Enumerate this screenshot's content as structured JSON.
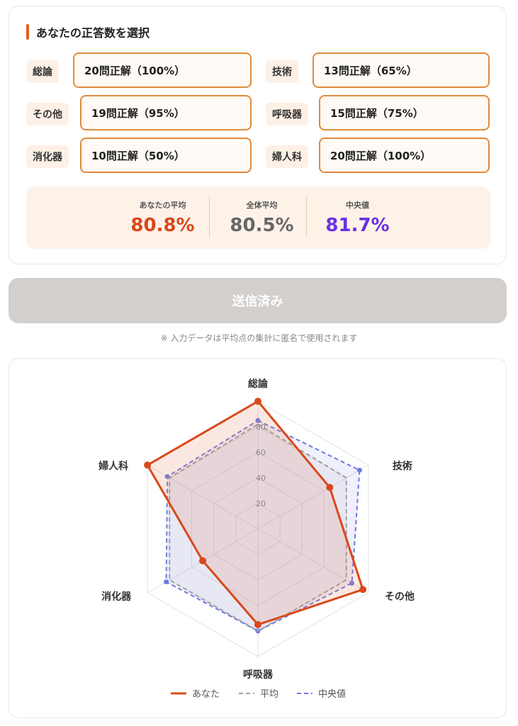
{
  "section_title": "あなたの正答数を選択",
  "subjects": [
    {
      "label": "総論",
      "selected": "20問正解（100%）"
    },
    {
      "label": "技術",
      "selected": "13問正解（65%）"
    },
    {
      "label": "その他",
      "selected": "19問正解（95%）"
    },
    {
      "label": "呼吸器",
      "selected": "15問正解（75%）"
    },
    {
      "label": "消化器",
      "selected": "10問正解（50%）"
    },
    {
      "label": "婦人科",
      "selected": "20問正解（100%）"
    }
  ],
  "stats": {
    "your_avg_label": "あなたの平均",
    "your_avg": "80.8%",
    "overall_avg_label": "全体平均",
    "overall_avg": "80.5%",
    "median_label": "中央値",
    "median": "81.7%"
  },
  "submit_label": "送信済み",
  "note": "※ 入力データは平均点の集計に匿名で使用されます",
  "colors": {
    "accent": "#e0601a",
    "you": "#d9481a",
    "average": "#999999",
    "median": "#6c7ae0",
    "median_text": "#6a2ee8"
  },
  "chart_data": {
    "type": "radar",
    "axes": [
      "総論",
      "技術",
      "その他",
      "呼吸器",
      "消化器",
      "婦人科"
    ],
    "r_ticks": [
      "20",
      "40",
      "60",
      "80"
    ],
    "r_range": [
      0,
      100
    ],
    "series": [
      {
        "name": "あなた",
        "values": [
          100,
          65,
          95,
          75,
          50,
          100
        ]
      },
      {
        "name": "平均",
        "values": [
          82,
          80,
          80,
          80,
          80,
          80
        ]
      },
      {
        "name": "中央値",
        "values": [
          85,
          92,
          85,
          80,
          83,
          82
        ]
      }
    ],
    "legend_position": "bottom"
  }
}
